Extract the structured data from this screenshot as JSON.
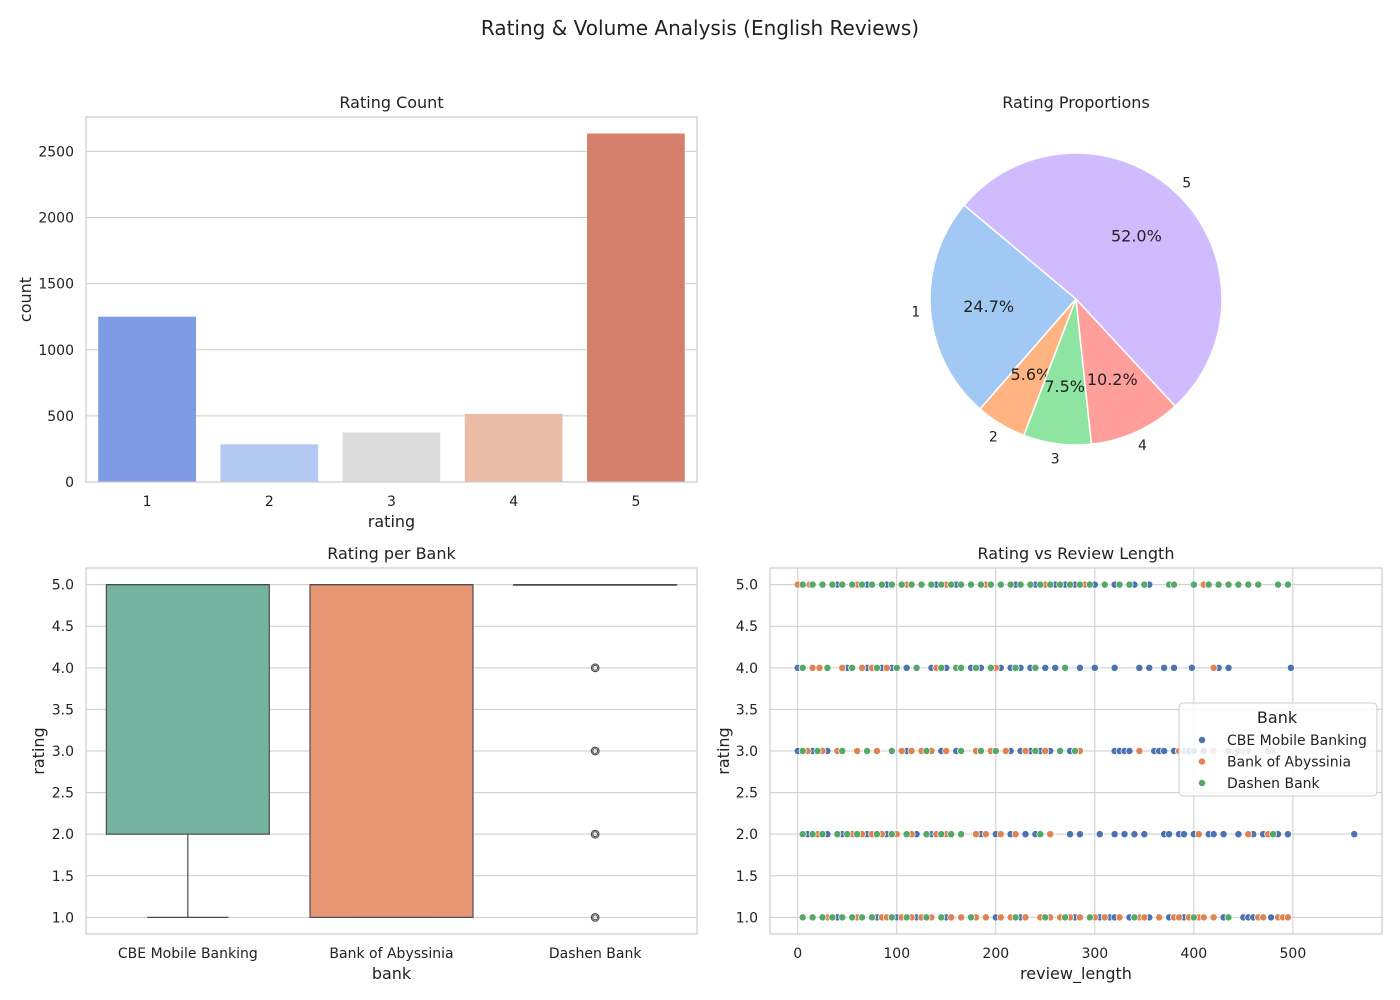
{
  "suptitle": "Rating & Volume Analysis (English Reviews)",
  "colors": {
    "grid": "#cccccc",
    "frame": "#cccccc",
    "text": "#222222",
    "box_line": "#4d4d4d"
  },
  "chart_data": [
    {
      "type": "bar",
      "title": "Rating Count",
      "xlabel": "rating",
      "ylabel": "count",
      "categories": [
        "1",
        "2",
        "3",
        "4",
        "5"
      ],
      "values": [
        1250,
        285,
        375,
        515,
        2635
      ],
      "colors": [
        "#7f9be6",
        "#b3c9f3",
        "#dcdcdc",
        "#eabca7",
        "#d5806c"
      ],
      "ylim": [
        0,
        2760
      ],
      "yticks": [
        0,
        500,
        1000,
        1500,
        2000,
        2500
      ],
      "grid": "y"
    },
    {
      "type": "pie",
      "title": "Rating Proportions",
      "labels": [
        "1",
        "2",
        "3",
        "4",
        "5"
      ],
      "values": [
        24.7,
        5.6,
        7.5,
        10.2,
        52.0
      ],
      "pct_labels": [
        "24.7%",
        "5.6%",
        "7.5%",
        "10.2%",
        "52.0%"
      ],
      "colors": [
        "#a1c9f4",
        "#ffb482",
        "#8de5a1",
        "#ff9f9b",
        "#d0bbff"
      ],
      "startangle": 140
    },
    {
      "type": "box",
      "title": "Rating per Bank",
      "xlabel": "bank",
      "ylabel": "rating",
      "categories": [
        "CBE Mobile Banking",
        "Bank of Abyssinia",
        "Dashen Bank"
      ],
      "colors": [
        "#73b3a0",
        "#e89674",
        "#8ea0c9"
      ],
      "boxes": [
        {
          "q1": 2.0,
          "median": 5.0,
          "q3": 5.0,
          "whisker_low": 1.0,
          "whisker_high": 5.0,
          "outliers": []
        },
        {
          "q1": 1.0,
          "median": 5.0,
          "q3": 5.0,
          "whisker_low": 1.0,
          "whisker_high": 5.0,
          "outliers": []
        },
        {
          "q1": 5.0,
          "median": 5.0,
          "q3": 5.0,
          "whisker_low": 5.0,
          "whisker_high": 5.0,
          "outliers": [
            1.0,
            2.0,
            3.0,
            4.0
          ]
        }
      ],
      "ylim": [
        0.8,
        5.2
      ],
      "yticks": [
        "1.0",
        "1.5",
        "2.0",
        "2.5",
        "3.0",
        "3.5",
        "4.0",
        "4.5",
        "5.0"
      ],
      "grid": "y"
    },
    {
      "type": "scatter",
      "title": "Rating vs Review Length",
      "xlabel": "review_length",
      "ylabel": "rating",
      "xlim": [
        -28,
        590
      ],
      "ylim": [
        0.8,
        5.2
      ],
      "xticks": [
        "0",
        "100",
        "200",
        "300",
        "400",
        "500"
      ],
      "yticks": [
        "1.0",
        "1.5",
        "2.0",
        "2.5",
        "3.0",
        "3.5",
        "4.0",
        "4.5",
        "5.0"
      ],
      "grid": "both",
      "legend": {
        "title": "Bank",
        "placement": "center-right"
      },
      "series": [
        {
          "name": "CBE Mobile Banking",
          "color": "#4c72b0",
          "points": {
            "5": [
              5,
              12,
              25,
              40,
              55,
              70,
              90,
              110,
              125,
              140,
              160,
              175,
              190,
              205,
              220,
              240,
              255,
              260,
              270,
              280,
              300,
              320,
              335,
              340,
              355,
              400
            ],
            "4": [
              0,
              5,
              15,
              30,
              50,
              70,
              85,
              95,
              100,
              110,
              120,
              135,
              150,
              165,
              175,
              185,
              195,
              205,
              215,
              225,
              235,
              250,
              260,
              270,
              285,
              300,
              320,
              345,
              355,
              370,
              380,
              398,
              425,
              435,
              498
            ],
            "3": [
              0,
              5,
              15,
              30,
              45,
              60,
              80,
              95,
              110,
              130,
              145,
              160,
              180,
              200,
              215,
              225,
              235,
              245,
              255,
              265,
              275,
              285,
              320,
              325,
              330,
              335,
              345,
              360,
              365,
              370,
              380,
              385,
              390,
              395,
              400,
              410,
              420,
              435,
              445,
              455,
              475
            ],
            "2": [
              10,
              30,
              45,
              70,
              90,
              110,
              120,
              130,
              135,
              140,
              145,
              150,
              155,
              165,
              185,
              200,
              215,
              230,
              240,
              255,
              275,
              285,
              305,
              320,
              330,
              340,
              350,
              370,
              375,
              385,
              390,
              400,
              405,
              415,
              420,
              430,
              445,
              460,
              470,
              485,
              495,
              562
            ],
            "1": [
              15,
              40,
              60,
              80,
              100,
              120,
              135,
              150,
              165,
              180,
              200,
              215,
              225,
              245,
              270,
              280,
              300,
              305,
              315,
              320,
              335,
              345,
              355,
              365,
              375,
              390,
              410,
              430,
              450,
              455,
              460,
              465,
              470,
              478
            ]
          }
        },
        {
          "name": "Bank of Abyssinia",
          "color": "#dd8452",
          "points": {
            "5": [
              0,
              12,
              35,
              60,
              85,
              110,
              150,
              175,
              190,
              250,
              290,
              400,
              410
            ],
            "4": [
              5,
              15,
              22,
              30,
              45,
              55,
              65,
              75,
              90,
              140,
              200,
              420
            ],
            "3": [
              10,
              25,
              40,
              60,
              80,
              105,
              115,
              125,
              135,
              150,
              165,
              180,
              195,
              210,
              230,
              250,
              265,
              285,
              345,
              385,
              420,
              450,
              480
            ],
            "2": [
              5,
              20,
              40,
              55,
              65,
              75,
              85,
              100,
              115,
              130,
              140,
              150,
              165,
              180,
              190,
              205,
              220,
              255,
              405,
              455,
              475
            ],
            "1": [
              5,
              15,
              30,
              60,
              75,
              85,
              90,
              105,
              115,
              125,
              135,
              155,
              165,
              180,
              190,
              205,
              215,
              230,
              245,
              255,
              265,
              275,
              285,
              300,
              310,
              325,
              340,
              345,
              350,
              365,
              380,
              385,
              395,
              405,
              410,
              420,
              465,
              470,
              485,
              490,
              495
            ]
          }
        },
        {
          "name": "Dashen Bank",
          "color": "#55a868",
          "points": {
            "5": [
              5,
              15,
              25,
              35,
              45,
              55,
              65,
              75,
              85,
              95,
              105,
              115,
              125,
              135,
              145,
              155,
              165,
              175,
              185,
              195,
              205,
              215,
              225,
              235,
              245,
              255,
              265,
              275,
              285,
              295,
              310,
              325,
              335,
              350,
              375,
              380,
              400,
              415,
              425,
              435,
              445,
              455,
              465,
              485,
              495
            ],
            "4": [
              5,
              30,
              55,
              80,
              100,
              120,
              145,
              160,
              165,
              180,
              195,
              220,
              240,
              270
            ],
            "3": [
              5,
              20,
              45,
              70,
              95,
              130,
              165,
              185,
              200,
              240,
              265,
              280
            ],
            "2": [
              5,
              15,
              25,
              40,
              50,
              60,
              80,
              95,
              110,
              130,
              145,
              155,
              165,
              245,
              480
            ],
            "1": [
              5,
              15,
              25,
              35,
              45,
              55,
              65,
              75,
              95,
              110,
              130,
              145,
              175,
              220,
              250,
              270,
              295,
              340,
              400,
              435
            ]
          }
        }
      ]
    }
  ]
}
